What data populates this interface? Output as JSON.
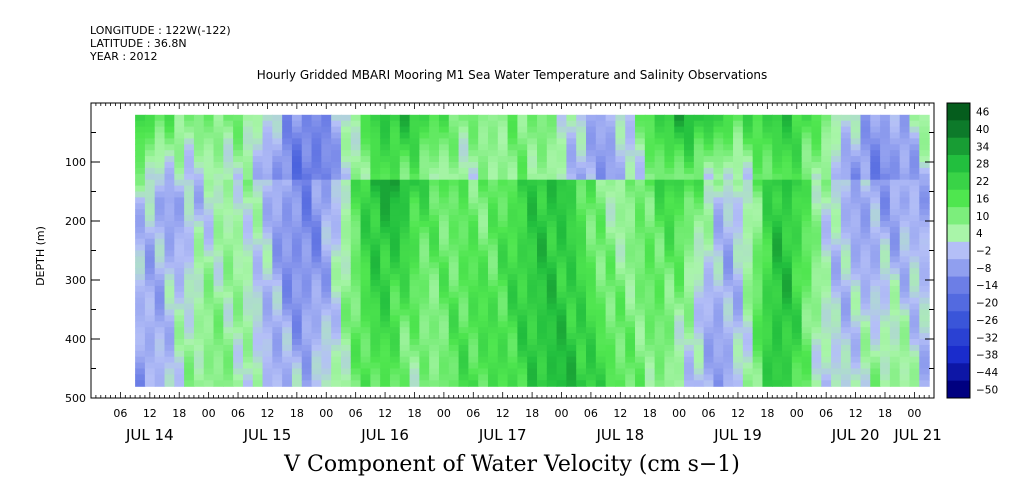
{
  "header": {
    "longitude": "LONGITUDE : 122W(-122)",
    "latitude": "LATITUDE : 36.8N",
    "year": "YEAR : 2012"
  },
  "chart_data": {
    "type": "heatmap",
    "title": "Hourly Gridded MBARI Mooring M1 Sea Water Temperature and Salinity Observations",
    "variable_title": "V Component of Water Velocity (cm s−1)",
    "ylabel": "DEPTH (m)",
    "ylim": [
      500,
      0
    ],
    "y_axis_inverted": true,
    "y_ticks": [
      "100",
      "200",
      "300",
      "400",
      "500"
    ],
    "x_hour_labels": [
      "06",
      "12",
      "18",
      "00",
      "06",
      "12",
      "18",
      "00",
      "06",
      "12",
      "18",
      "00",
      "06",
      "12",
      "18",
      "00",
      "06",
      "12",
      "18",
      "00",
      "06",
      "12",
      "18",
      "00",
      "06",
      "12",
      "18",
      "00"
    ],
    "x_day_labels": [
      "JUL 14",
      "JUL 15",
      "JUL 16",
      "JUL 17",
      "JUL 18",
      "JUL 19",
      "JUL 20",
      "JUL 21"
    ],
    "time_range": [
      "2012-07-14 00:00",
      "2012-07-21 04:00"
    ],
    "data_extent": {
      "start": "2012-07-14 09:00",
      "end": "2012-07-21 03:00",
      "depth_top": 20,
      "depth_bottom": 480
    },
    "colorbar": {
      "labels": [
        "46",
        "40",
        "34",
        "28",
        "22",
        "16",
        "10",
        "4",
        "−2",
        "−8",
        "−14",
        "−20",
        "−26",
        "−32",
        "−38",
        "−44",
        "−50"
      ],
      "min": -50,
      "max": 50,
      "colors": {
        "n50": "#000080",
        "n38": "#1a2ccc",
        "n26": "#3a55d9",
        "n14": "#6c7ee6",
        "n2": "#b4bff7",
        "p4": "#a9f5a9",
        "p16": "#4fe64f",
        "p28": "#22bf3e",
        "p40": "#0d7a2a",
        "p50": "#004a14"
      }
    },
    "pattern": "Upper 20–150 m predominantly positive (+4 to +22 cm/s, green); below ~150 m alternating vertical bands of negative (−2 to −20, blue) and positive (+4 to +16, green) velocity; small gaps near 480 m"
  }
}
